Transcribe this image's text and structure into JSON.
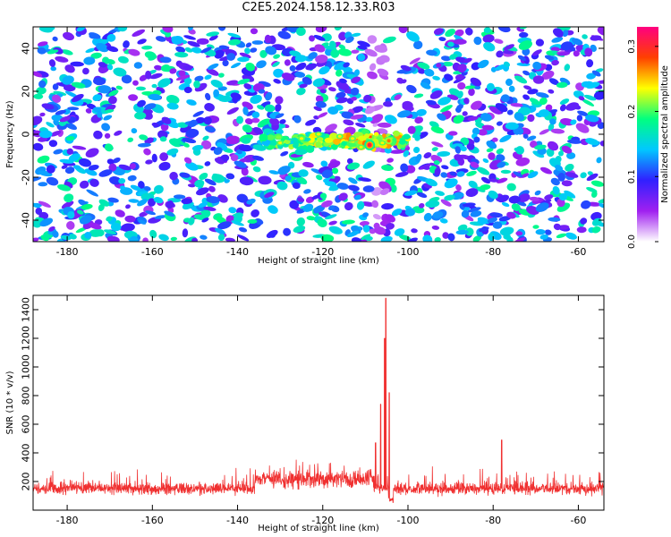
{
  "title": "C2E5.2024.158.12.33.R03",
  "chart_data": [
    {
      "type": "heatmap",
      "xlabel": "Height of straight line (km)",
      "ylabel": "Frequency (Hz)",
      "xlim": [
        -188,
        -54
      ],
      "ylim": [
        -50,
        50
      ],
      "xticks": [
        -180,
        -160,
        -140,
        -120,
        -100,
        -80,
        -60
      ],
      "yticks": [
        -40,
        -20,
        0,
        20,
        40
      ],
      "colorbar": {
        "label": "Normalized spectral amplitude",
        "range": [
          0.0,
          0.33
        ],
        "ticks": [
          "0.0",
          "0.1",
          "0.2",
          "0.3"
        ],
        "colors": [
          "#ffffff",
          "#a020f0",
          "#3020ff",
          "#00c8ff",
          "#00ff80",
          "#ffff00",
          "#ff4000",
          "#ff0080"
        ]
      },
      "features": [
        {
          "desc": "signal band",
          "x_range": [
            -135,
            -100
          ],
          "frequency": -3
        },
        {
          "desc": "peak",
          "x": -109,
          "frequency": -5,
          "amplitude": 0.31
        },
        {
          "desc": "low-amplitude vertical strip",
          "x_range": [
            -109,
            -105
          ]
        }
      ]
    },
    {
      "type": "line",
      "xlabel": "Height of straight line (km)",
      "ylabel": "SNR (10 * v/v)",
      "xlim": [
        -188,
        -54
      ],
      "ylim": [
        0,
        1500
      ],
      "xticks": [
        -180,
        -160,
        -140,
        -120,
        -100,
        -80,
        -60
      ],
      "yticks": [
        200,
        400,
        600,
        800,
        1000,
        1200,
        1400
      ],
      "color": "#f03030",
      "baseline": 150,
      "noise_range": [
        50,
        300
      ],
      "peaks": [
        {
          "x": -105.2,
          "y": 1480
        },
        {
          "x": -105.5,
          "y": 1200
        },
        {
          "x": -104.4,
          "y": 820
        },
        {
          "x": -106.4,
          "y": 740
        },
        {
          "x": -107.6,
          "y": 470
        },
        {
          "x": -78,
          "y": 490
        }
      ]
    }
  ]
}
